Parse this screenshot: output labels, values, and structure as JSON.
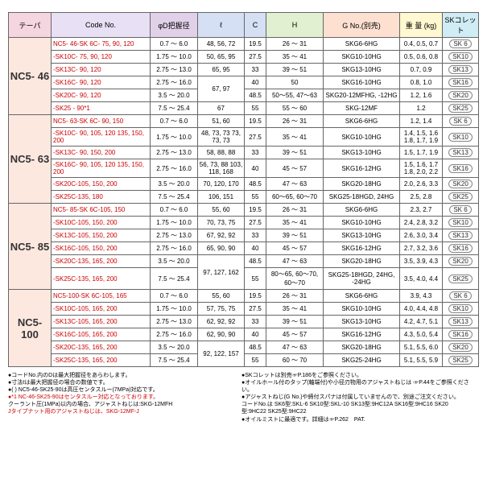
{
  "headers": {
    "taper": "テーパ",
    "code": "Code No.",
    "d": "φD把握径",
    "l": "ℓ",
    "c": "C",
    "h": "H",
    "g": "G No.(別売)",
    "w": "重 量\n(kg)",
    "sk": "SKコレット"
  },
  "groups": [
    {
      "taper": "NC5- 46",
      "rows": [
        {
          "code": "NC5- 46-SK 6C- 75,  90, 120",
          "d": "0.7 ～ 6.0",
          "l": "48, 56, 72",
          "c": "19.5",
          "h": "26 ～ 31",
          "g": "SKG6-6HG",
          "w": "0.4, 0.5, 0.7",
          "sk": "SK 6"
        },
        {
          "code": "-SK10C- 75,  90, 120",
          "d": "1.75 ～ 10.0",
          "l": "50, 65, 95",
          "c": "27.5",
          "h": "35 ～ 41",
          "g": "SKG10-10HG",
          "w": "0.5, 0.6, 0.8",
          "sk": "SK10"
        },
        {
          "code": "-SK13C- 90, 120",
          "d": "2.75 ～ 13.0",
          "l": "65,  95",
          "c": "33",
          "h": "39 ～ 51",
          "g": "SKG13-10HG",
          "w": "0.7, 0.9",
          "sk": "SK13"
        },
        {
          "code": "-SK16C- 90, 120",
          "d": "2.75 ～ 16.0",
          "l": "67, 97",
          "c": "40",
          "h": "50",
          "g": "SKG16-10HG",
          "w": "0.8, 1.0",
          "sk": "SK16"
        },
        {
          "code": "-SK20C- 90, 120",
          "d": "3.5 ～ 20.0",
          "l": "",
          "c": "48.5",
          "h": "50～55, 47～63",
          "g": "SKG20-12MFHG, -12HG",
          "w": "1.2, 1.6",
          "sk": "SK20",
          "l_rowspan": true
        },
        {
          "code": "-SK25 - 90*1",
          "d": "7.5 ～ 25.4",
          "l": "67",
          "c": "55",
          "h": "55 ～ 60",
          "g": "SKG-12MF",
          "w": "1.2",
          "sk": "SK25"
        }
      ]
    },
    {
      "taper": "NC5- 63",
      "rows": [
        {
          "code": "NC5- 63-SK 6C- 90, 150",
          "d": "0.7 ～ 6.0",
          "l": "51,  60",
          "c": "19.5",
          "h": "26 ～ 31",
          "g": "SKG6-6HG",
          "w": "1.2, 1.4",
          "sk": "SK 6"
        },
        {
          "code": "-SK10C- 90, 105, 120\n135, 150, 200",
          "d": "1.75 ～ 10.0",
          "l": "48, 73, 73\n73, 73, 73",
          "c": "27.5",
          "h": "35 ～ 41",
          "g": "SKG10-10HG",
          "w": "1.4, 1.5, 1.6\n1.8, 1.7, 1.9",
          "sk": "SK10"
        },
        {
          "code": "-SK13C- 90, 150, 200",
          "d": "2.75 ～ 13.0",
          "l": "58, 88, 88",
          "c": "33",
          "h": "39 ～ 51",
          "g": "SKG13-10HG",
          "w": "1.5, 1.7, 1.9",
          "sk": "SK13"
        },
        {
          "code": "-SK16C- 90, 105, 120\n135, 150, 200",
          "d": "2.75 ～ 16.0",
          "l": "56, 73, 88\n103, 118, 168",
          "c": "40",
          "h": "45 ～ 57",
          "g": "SKG16-12HG",
          "w": "1.5, 1.6, 1.7\n1.8, 2.0, 2.2",
          "sk": "SK16"
        },
        {
          "code": "-SK20C-105, 150, 200",
          "d": "3.5 ～ 20.0",
          "l": "70, 120, 170",
          "c": "48.5",
          "h": "47 ～ 63",
          "g": "SKG20-18HG",
          "w": "2.0, 2.6, 3.3",
          "sk": "SK20"
        },
        {
          "code": "-SK25C-135, 180",
          "d": "7.5 ～ 25.4",
          "l": "106, 151",
          "c": "55",
          "h": "60～65, 60～70",
          "g": "SKG25-18HGD, 24HG",
          "w": "2.5, 2.8",
          "sk": "SK25"
        }
      ]
    },
    {
      "taper": "NC5- 85",
      "rows": [
        {
          "code": "NC5- 85-SK 6C-105, 150",
          "d": "0.7 ～ 6.0",
          "l": "55, 60",
          "c": "19.5",
          "h": "26 ～ 31",
          "g": "SKG6-6HG",
          "w": "2.3, 2.7",
          "sk": "SK 6"
        },
        {
          "code": "-SK10C-105, 150, 200",
          "d": "1.75 ～ 10.0",
          "l": "70, 73, 75",
          "c": "27.5",
          "h": "35 ～ 41",
          "g": "SKG10-10HG",
          "w": "2.4, 2.8, 3.2",
          "sk": "SK10"
        },
        {
          "code": "-SK13C-105, 150, 200",
          "d": "2.75 ～ 13.0",
          "l": "67, 92, 92",
          "c": "33",
          "h": "39 ～ 51",
          "g": "SKG13-10HG",
          "w": "2.6, 3.0, 3.4",
          "sk": "SK13"
        },
        {
          "code": "-SK16C-105, 150, 200",
          "d": "2.75 ～ 16.0",
          "l": "65, 90, 90",
          "c": "40",
          "h": "45 ～ 57",
          "g": "SKG16-12HG",
          "w": "2.7, 3.2, 3.6",
          "sk": "SK16"
        },
        {
          "code": "-SK20C-135, 165, 200",
          "d": "3.5 ～ 20.0",
          "l": "97, 127, 162",
          "c": "48.5",
          "h": "47 ～ 63",
          "g": "SKG20-18HG",
          "w": "3.5, 3.9, 4.3",
          "sk": "SK20"
        },
        {
          "code": "-SK25C-135, 165, 200",
          "d": "7.5 ～ 25.4",
          "l": "",
          "c": "55",
          "h": "80～65, 60～70, 60～70",
          "g": "SKG25-18HGD, 24HG, -24HG",
          "w": "3.5, 4.0, 4.4",
          "sk": "SK25",
          "l_rowspan": true
        }
      ]
    },
    {
      "taper": "NC5-100",
      "rows": [
        {
          "code": "NC5-100-SK 6C-105, 165",
          "d": "0.7 ～ 6.0",
          "l": "55, 60",
          "c": "19.5",
          "h": "26 ～ 31",
          "g": "SKG6-6HG",
          "w": "3.9, 4.3",
          "sk": "SK 6"
        },
        {
          "code": "-SK10C-105, 165, 200",
          "d": "1.75 ～ 10.0",
          "l": "57, 75, 75",
          "c": "27.5",
          "h": "35 ～ 41",
          "g": "SKG10-10HG",
          "w": "4.0, 4.4, 4.8",
          "sk": "SK10"
        },
        {
          "code": "-SK13C-105, 165, 200",
          "d": "2.75 ～ 13.0",
          "l": "62, 92, 92",
          "c": "33",
          "h": "39 ～ 51",
          "g": "SKG13-10HG",
          "w": "4.2, 4.7, 5.1",
          "sk": "SK13"
        },
        {
          "code": "-SK16C-105, 165, 200",
          "d": "2.75 ～ 16.0",
          "l": "62, 90, 90",
          "c": "40",
          "h": "45 ～ 57",
          "g": "SKG16-12HG",
          "w": "4.3, 5.0, 5.4",
          "sk": "SK16"
        },
        {
          "code": "-SK20C-135, 165, 200",
          "d": "3.5 ～ 20.0",
          "l": "92, 122, 157",
          "c": "48.5",
          "h": "47 ～ 63",
          "g": "SKG20-18HG",
          "w": "5.1, 5.5, 6.0",
          "sk": "SK20"
        },
        {
          "code": "-SK25C-135, 165, 200",
          "d": "7.5 ～ 25.4",
          "l": "",
          "c": "55",
          "h": "60 ～ 70",
          "g": "SKG25-24HG",
          "w": "5.1, 5.5, 5.9",
          "sk": "SK25",
          "l_rowspan": true
        }
      ]
    }
  ],
  "notes": {
    "left": [
      {
        "t": "●コードNo.内のDは最大把握径をあらわします。"
      },
      {
        "t": "●寸法ℓは最大把握径の場合の数値です。"
      },
      {
        "t": "●(  )  NC5-46-SK25-90は高圧センタスルー(7MPa)対応です。"
      },
      {
        "t": "●*1 NC-46-SK25-90はセンタスルー対応となっております。",
        "red": true
      },
      {
        "t": "クーラント圧(1MPa)以内の場合、アジャストねじは:SKG-12MFH"
      },
      {
        "t": "Jタイプナット用のアジャストねじは、SKG-12MF-J",
        "red": true
      }
    ],
    "right": [
      {
        "t": "●SKコレットは別売☞P.186をご参照ください。"
      },
      {
        "t": "●オイルホール付のタップ(軸端付)や小径刃物用のアジャストねじは ☞P.44をご参照ください。"
      },
      {
        "t": "●アジャストねじ(G No.)や締付スパナは付属していませんので、別途ご注文ください。"
      },
      {
        "t": "コードNo.は SK6型:SKL-6 SK10型:SKL-10 SK13型:9HC12A SK16型:9HC16 SK20型:9HC22 SK25型:9HC22"
      },
      {
        "t": "●オイルミストに最適です。詳細は☞P.262　PAT."
      }
    ]
  }
}
